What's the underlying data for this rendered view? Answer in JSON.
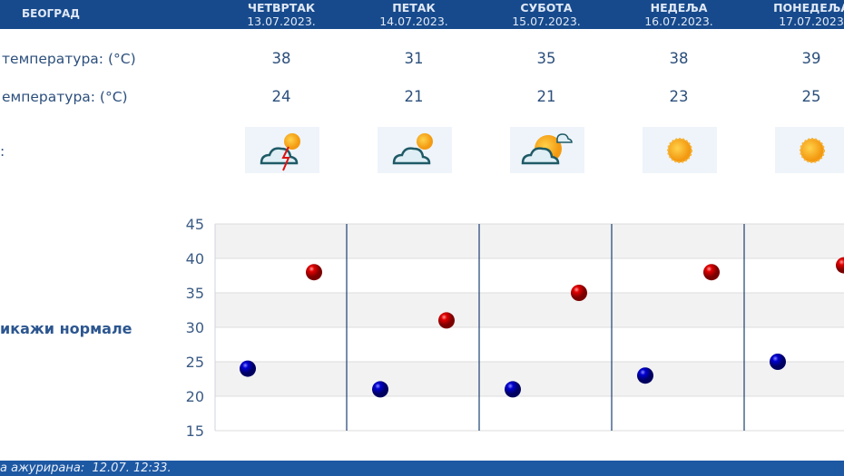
{
  "header": {
    "city": "БЕОГРАД"
  },
  "days": [
    {
      "name": "ЧЕТВРТАК",
      "date": "13.07.2023.",
      "max": "38",
      "min": "24",
      "icon": "thunderstorm-sun-cloud-icon"
    },
    {
      "name": "ПЕТАК",
      "date": "14.07.2023.",
      "max": "31",
      "min": "21",
      "icon": "partly-cloudy-icon"
    },
    {
      "name": "СУБОТА",
      "date": "15.07.2023.",
      "max": "35",
      "min": "21",
      "icon": "mostly-sunny-icon"
    },
    {
      "name": "НЕДЕЉА",
      "date": "16.07.2023.",
      "max": "38",
      "min": "23",
      "icon": "sunny-icon"
    },
    {
      "name": "ПОНЕДЕЉА",
      "date": "17.07.2023",
      "max": "39",
      "min": "25",
      "icon": "sunny-icon"
    }
  ],
  "rows": {
    "max_label": "температура: (°C)",
    "min_label": "емпература: (°C)",
    "icon_label": ":"
  },
  "normals_link": "икажи нормале",
  "footer": {
    "updated": "а ажурирана:  12.07. 12:33."
  },
  "colors": {
    "header": "#174a8c",
    "max_marker": "#d40000",
    "min_marker": "#0000c0",
    "divider": "#1d3f73"
  },
  "chart_data": {
    "type": "scatter",
    "categories": [
      "13.07.2023.",
      "14.07.2023.",
      "15.07.2023.",
      "16.07.2023.",
      "17.07.2023."
    ],
    "series": [
      {
        "values": [
          38,
          31,
          35,
          38,
          39
        ],
        "color": "#d40000"
      },
      {
        "values": [
          24,
          21,
          21,
          23,
          25
        ],
        "color": "#0000c0"
      }
    ],
    "yticks": [
      15,
      20,
      25,
      30,
      35,
      40,
      45
    ],
    "ylim": [
      15,
      45
    ],
    "grid": true
  }
}
